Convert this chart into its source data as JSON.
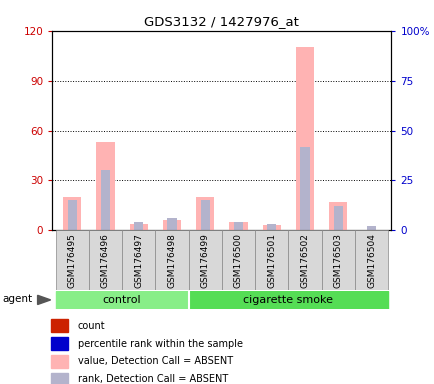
{
  "title": "GDS3132 / 1427976_at",
  "samples": [
    "GSM176495",
    "GSM176496",
    "GSM176497",
    "GSM176498",
    "GSM176499",
    "GSM176500",
    "GSM176501",
    "GSM176502",
    "GSM176503",
    "GSM176504"
  ],
  "n_control": 4,
  "n_smoke": 6,
  "value_absent": [
    20,
    53,
    4,
    6,
    20,
    5,
    3,
    110,
    17,
    0
  ],
  "rank_absent_pct": [
    15,
    30,
    4,
    6,
    15,
    4,
    3,
    42,
    12,
    2
  ],
  "ylim_left": [
    0,
    120
  ],
  "ylim_right": [
    0,
    100
  ],
  "yticks_left": [
    0,
    30,
    60,
    90,
    120
  ],
  "yticks_right": [
    0,
    25,
    50,
    75,
    100
  ],
  "yticklabels_left": [
    "0",
    "30",
    "60",
    "90",
    "120"
  ],
  "yticklabels_right": [
    "0",
    "25",
    "50",
    "75",
    "100%"
  ],
  "left_tick_color": "#cc0000",
  "right_tick_color": "#0000cc",
  "color_count": "#cc2200",
  "color_percentile": "#0000cc",
  "color_value_absent": "#ffb3b3",
  "color_rank_absent": "#b3b3cc",
  "color_control": "#88ee88",
  "color_smoke": "#55dd55",
  "color_xticklabels_bg": "#d8d8d8",
  "agent_label": "agent",
  "label_count": "count",
  "label_percentile": "percentile rank within the sample",
  "label_value_absent": "value, Detection Call = ABSENT",
  "label_rank_absent": "rank, Detection Call = ABSENT",
  "background_color": "#ffffff"
}
